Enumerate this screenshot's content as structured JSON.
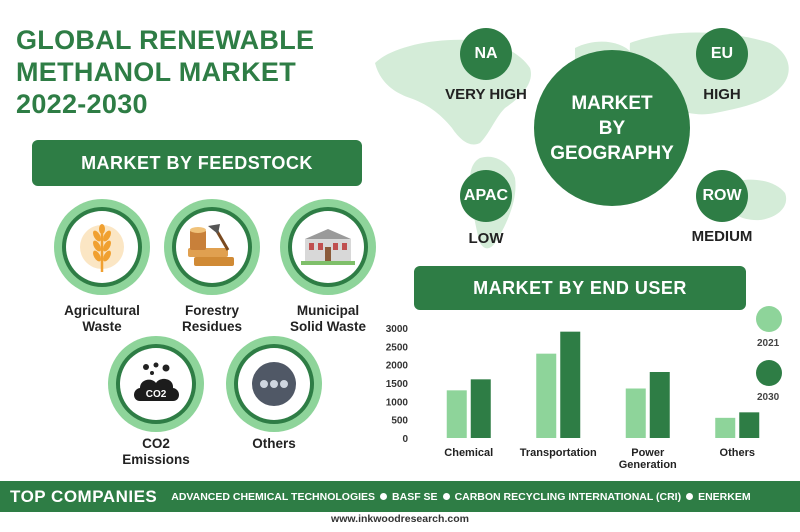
{
  "title": {
    "line1": "GLOBAL RENEWABLE",
    "line2": "METHANOL MARKET",
    "line3": "2022-2030"
  },
  "feedstock": {
    "heading": "MARKET BY FEEDSTOCK",
    "items": [
      {
        "l1": "Agricultural",
        "l2": "Waste",
        "icon": "wheat-icon"
      },
      {
        "l1": "Forestry",
        "l2": "Residues",
        "icon": "wood-logs-icon"
      },
      {
        "l1": "Municipal",
        "l2": "Solid Waste",
        "icon": "building-icon"
      },
      {
        "l1": "CO2",
        "l2": "Emissions",
        "icon": "co2-cloud-icon",
        "icon_text": "CO2"
      },
      {
        "l1": "Others",
        "l2": "",
        "icon": "ellipsis-icon"
      }
    ]
  },
  "geography": {
    "center_l1": "MARKET",
    "center_l2": "BY",
    "center_l3": "GEOGRAPHY",
    "regions": [
      {
        "code": "NA",
        "level": "VERY HIGH"
      },
      {
        "code": "EU",
        "level": "HIGH"
      },
      {
        "code": "APAC",
        "level": "LOW"
      },
      {
        "code": "ROW",
        "level": "MEDIUM"
      }
    ]
  },
  "end_user": {
    "heading": "MARKET BY END USER"
  },
  "chart_data": {
    "type": "bar",
    "categories": [
      "Chemical",
      "Transportation",
      "Power Generation",
      "Others"
    ],
    "series": [
      {
        "name": "2021",
        "values": [
          1300,
          2300,
          1350,
          550
        ],
        "color": "#8ed49a"
      },
      {
        "name": "2030",
        "values": [
          1600,
          2900,
          1800,
          700
        ],
        "color": "#2e7d45"
      }
    ],
    "yticks": [
      0,
      500,
      1000,
      1500,
      2000,
      2500,
      3000
    ],
    "ylim": [
      0,
      3000
    ],
    "legend_position": "right"
  },
  "footer": {
    "heading": "TOP COMPANIES",
    "companies": [
      "ADVANCED CHEMICAL TECHNOLOGIES",
      "BASF SE",
      "CARBON RECYCLING INTERNATIONAL (CRI)",
      "ENERKEM"
    ],
    "website": "www.inkwoodresearch.com"
  },
  "colors": {
    "primary": "#2e7d45",
    "light": "#8ed49a",
    "map": "#d4ecd8"
  }
}
